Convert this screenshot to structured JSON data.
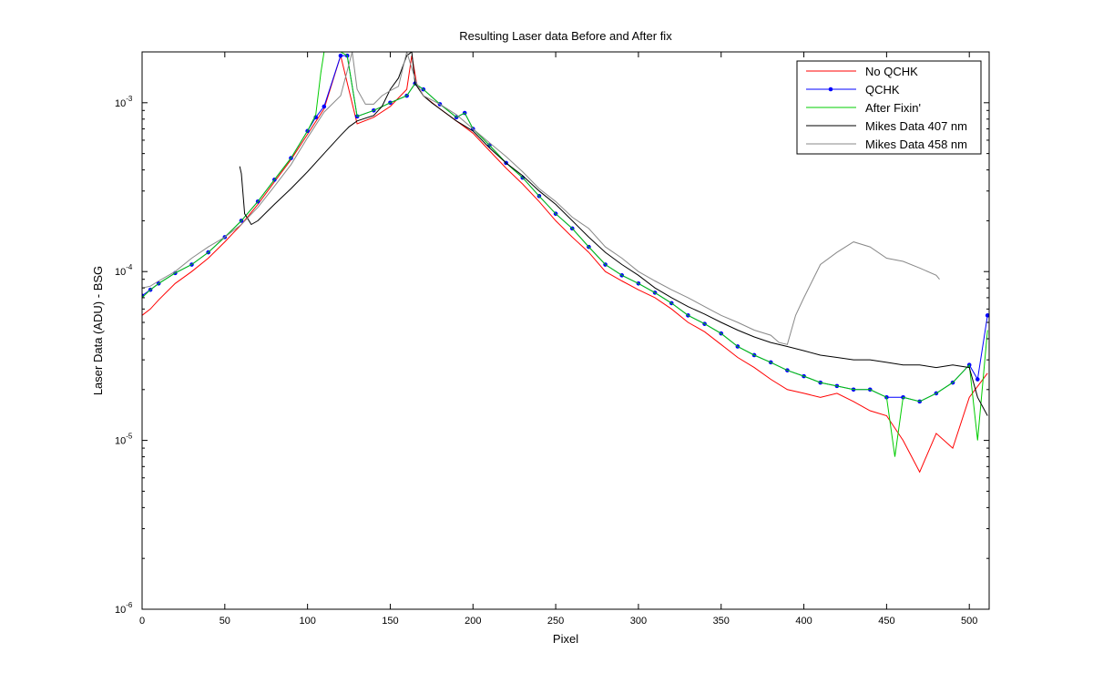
{
  "chart_data": {
    "type": "line",
    "title": "Resulting Laser data Before and After fix",
    "xlabel": "Pixel",
    "ylabel": "Laser Data (ADU) - BSG",
    "y_scale": "log",
    "xlim": [
      0,
      512
    ],
    "ylim": [
      1e-06,
      0.002
    ],
    "x_ticks": [
      0,
      50,
      100,
      150,
      200,
      250,
      300,
      350,
      400,
      450,
      500
    ],
    "y_ticks": [
      {
        "value": 1e-06,
        "base": "10",
        "exp": "-6"
      },
      {
        "value": 1e-05,
        "base": "10",
        "exp": "-5"
      },
      {
        "value": 0.0001,
        "base": "10",
        "exp": "-4"
      },
      {
        "value": 0.001,
        "base": "10",
        "exp": "-3"
      }
    ],
    "grid": false,
    "legend_position": "top-right",
    "series": [
      {
        "name": "No QCHK",
        "color": "#ff0000",
        "marker": "none",
        "x": [
          0,
          5,
          10,
          20,
          30,
          40,
          50,
          60,
          70,
          80,
          90,
          100,
          110,
          120,
          130,
          140,
          150,
          160,
          163,
          166,
          170,
          180,
          190,
          200,
          210,
          220,
          230,
          240,
          250,
          260,
          270,
          280,
          290,
          300,
          310,
          320,
          330,
          340,
          350,
          360,
          370,
          380,
          390,
          400,
          410,
          420,
          430,
          440,
          450,
          460,
          470,
          480,
          490,
          500,
          511
        ],
        "y": [
          5.5e-05,
          6e-05,
          6.8e-05,
          8.5e-05,
          0.0001,
          0.00012,
          0.00015,
          0.00019,
          0.00025,
          0.00034,
          0.00046,
          0.00065,
          0.00092,
          0.0019,
          0.00075,
          0.00082,
          0.00095,
          0.0012,
          0.0019,
          0.0013,
          0.0011,
          0.00092,
          0.00078,
          0.00066,
          0.00052,
          0.00041,
          0.00033,
          0.00026,
          0.0002,
          0.00016,
          0.00013,
          0.0001,
          8.8e-05,
          7.8e-05,
          7e-05,
          6e-05,
          5e-05,
          4.4e-05,
          3.7e-05,
          3.1e-05,
          2.7e-05,
          2.3e-05,
          2e-05,
          1.9e-05,
          1.8e-05,
          1.9e-05,
          1.7e-05,
          1.5e-05,
          1.4e-05,
          1e-05,
          6.5e-06,
          1.1e-05,
          9e-06,
          1.8e-05,
          2.5e-05
        ]
      },
      {
        "name": "QCHK",
        "color": "#0000ff",
        "marker": "dot",
        "x": [
          0,
          5,
          10,
          20,
          30,
          40,
          50,
          60,
          70,
          80,
          90,
          100,
          105,
          110,
          120,
          124,
          130,
          140,
          150,
          160,
          165,
          170,
          180,
          190,
          195,
          200,
          210,
          220,
          230,
          240,
          250,
          260,
          270,
          280,
          290,
          300,
          310,
          320,
          330,
          340,
          350,
          360,
          370,
          380,
          390,
          400,
          410,
          420,
          430,
          440,
          450,
          460,
          470,
          480,
          490,
          500,
          505,
          511
        ],
        "y": [
          7.2e-05,
          7.8e-05,
          8.5e-05,
          9.8e-05,
          0.00011,
          0.00013,
          0.00016,
          0.0002,
          0.00026,
          0.00035,
          0.00047,
          0.00068,
          0.00082,
          0.00095,
          0.0019,
          0.0019,
          0.00083,
          0.0009,
          0.001,
          0.0011,
          0.0013,
          0.0012,
          0.00098,
          0.00082,
          0.00087,
          0.0007,
          0.00056,
          0.00044,
          0.00036,
          0.00028,
          0.00022,
          0.00018,
          0.00014,
          0.00011,
          9.5e-05,
          8.5e-05,
          7.5e-05,
          6.5e-05,
          5.5e-05,
          4.9e-05,
          4.3e-05,
          3.6e-05,
          3.2e-05,
          2.9e-05,
          2.6e-05,
          2.4e-05,
          2.2e-05,
          2.1e-05,
          2e-05,
          2e-05,
          1.8e-05,
          1.8e-05,
          1.7e-05,
          1.9e-05,
          2.2e-05,
          2.8e-05,
          2.3e-05,
          5.5e-05
        ]
      },
      {
        "name": "After Fixin'",
        "color": "#00cc00",
        "marker": "none",
        "x": [
          0,
          5,
          10,
          20,
          30,
          40,
          50,
          60,
          70,
          80,
          90,
          100,
          105,
          108,
          110,
          120,
          124,
          130,
          140,
          150,
          160,
          165,
          170,
          180,
          190,
          195,
          200,
          210,
          220,
          230,
          240,
          250,
          260,
          270,
          280,
          290,
          300,
          310,
          320,
          330,
          340,
          350,
          360,
          370,
          380,
          390,
          400,
          410,
          420,
          430,
          440,
          450,
          455,
          460,
          470,
          480,
          490,
          500,
          505,
          511
        ],
        "y": [
          7e-05,
          7.8e-05,
          8.5e-05,
          9.8e-05,
          0.00011,
          0.00013,
          0.00016,
          0.0002,
          0.00026,
          0.00035,
          0.00047,
          0.00068,
          0.00085,
          0.0015,
          0.002,
          0.002,
          0.0019,
          0.00083,
          0.0009,
          0.001,
          0.0011,
          0.0013,
          0.0012,
          0.00098,
          0.00082,
          0.00087,
          0.0007,
          0.00056,
          0.00044,
          0.00036,
          0.00028,
          0.00022,
          0.00018,
          0.00014,
          0.00011,
          9.5e-05,
          8.5e-05,
          7.5e-05,
          6.5e-05,
          5.5e-05,
          4.9e-05,
          4.3e-05,
          3.6e-05,
          3.2e-05,
          2.9e-05,
          2.6e-05,
          2.4e-05,
          2.2e-05,
          2.1e-05,
          2e-05,
          2e-05,
          1.8e-05,
          8e-06,
          1.8e-05,
          1.7e-05,
          1.9e-05,
          2.2e-05,
          2.8e-05,
          1e-05,
          4.5e-05
        ]
      },
      {
        "name": "Mikes Data 407 nm",
        "color": "#000000",
        "marker": "none",
        "x": [
          59,
          60,
          62,
          66,
          70,
          80,
          90,
          100,
          110,
          120,
          125,
          130,
          140,
          145,
          150,
          155,
          160,
          163,
          165,
          170,
          175,
          180,
          190,
          200,
          210,
          220,
          230,
          240,
          250,
          260,
          270,
          280,
          290,
          300,
          310,
          320,
          330,
          340,
          350,
          360,
          370,
          380,
          390,
          400,
          410,
          420,
          430,
          440,
          450,
          460,
          470,
          480,
          490,
          500,
          505,
          511
        ],
        "y": [
          0.00042,
          0.00038,
          0.00022,
          0.00019,
          0.0002,
          0.00025,
          0.00031,
          0.00039,
          0.0005,
          0.00064,
          0.00072,
          0.00078,
          0.00084,
          0.00095,
          0.0012,
          0.0014,
          0.0019,
          0.002,
          0.0013,
          0.0011,
          0.001,
          0.00092,
          0.00078,
          0.00068,
          0.00054,
          0.00044,
          0.00037,
          0.0003,
          0.00025,
          0.0002,
          0.00016,
          0.00013,
          0.00011,
          9.5e-05,
          8e-05,
          7e-05,
          6.2e-05,
          5.6e-05,
          5e-05,
          4.5e-05,
          4.1e-05,
          3.8e-05,
          3.6e-05,
          3.4e-05,
          3.2e-05,
          3.1e-05,
          3e-05,
          3e-05,
          2.9e-05,
          2.8e-05,
          2.8e-05,
          2.7e-05,
          2.8e-05,
          2.7e-05,
          1.8e-05,
          1.4e-05
        ]
      },
      {
        "name": "Mikes Data 458 nm",
        "color": "#888888",
        "marker": "none",
        "x": [
          0,
          5,
          10,
          20,
          30,
          40,
          50,
          60,
          70,
          80,
          90,
          100,
          110,
          120,
          127,
          130,
          135,
          140,
          145,
          150,
          155,
          160,
          163,
          166,
          170,
          180,
          190,
          200,
          210,
          220,
          230,
          240,
          250,
          260,
          270,
          280,
          290,
          300,
          310,
          320,
          330,
          340,
          350,
          360,
          370,
          380,
          385,
          390,
          395,
          400,
          410,
          420,
          430,
          440,
          450,
          460,
          470,
          480,
          482
        ],
        "y": [
          8e-05,
          8.2e-05,
          8.8e-05,
          0.0001,
          0.00012,
          0.00014,
          0.00016,
          0.00019,
          0.00024,
          0.00032,
          0.00043,
          0.00062,
          0.00088,
          0.0011,
          0.002,
          0.0012,
          0.00098,
          0.00098,
          0.0011,
          0.00118,
          0.00125,
          0.002,
          0.0016,
          0.0013,
          0.0011,
          0.00098,
          0.00085,
          0.0007,
          0.00058,
          0.00048,
          0.00039,
          0.00031,
          0.00026,
          0.00021,
          0.00018,
          0.00014,
          0.00012,
          0.0001,
          8.8e-05,
          7.8e-05,
          7e-05,
          6.2e-05,
          5.5e-05,
          5e-05,
          4.5e-05,
          4.2e-05,
          3.8e-05,
          3.7e-05,
          5.5e-05,
          7e-05,
          0.00011,
          0.00013,
          0.00015,
          0.00014,
          0.00012,
          0.000115,
          0.000105,
          9.5e-05,
          9e-05
        ]
      }
    ]
  }
}
